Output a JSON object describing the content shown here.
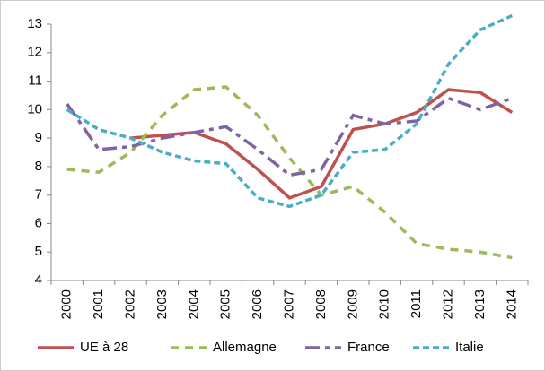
{
  "chart_data": {
    "type": "line",
    "categories": [
      "2000",
      "2001",
      "2002",
      "2003",
      "2004",
      "2005",
      "2006",
      "2007",
      "2008",
      "2009",
      "2010",
      "2011",
      "2012",
      "2013",
      "2014"
    ],
    "series": [
      {
        "name": "UE à 28",
        "color": "#c0504d",
        "values": [
          null,
          null,
          9.0,
          9.1,
          9.2,
          8.8,
          7.9,
          6.9,
          7.3,
          9.3,
          9.5,
          9.9,
          10.7,
          10.6,
          9.9
        ]
      },
      {
        "name": "Allemagne",
        "color": "#9bbb59",
        "values": [
          7.9,
          7.8,
          8.5,
          9.8,
          10.7,
          10.8,
          9.8,
          8.3,
          7.0,
          7.3,
          6.4,
          5.3,
          5.1,
          5.0,
          4.8
        ]
      },
      {
        "name": "France",
        "color": "#8064a2",
        "values": [
          10.2,
          8.6,
          8.7,
          9.0,
          9.2,
          9.4,
          8.6,
          7.7,
          7.9,
          9.8,
          9.5,
          9.6,
          10.4,
          10.0,
          10.4
        ]
      },
      {
        "name": "Italie",
        "color": "#4bacc6",
        "values": [
          10.0,
          9.3,
          9.0,
          8.5,
          8.2,
          8.1,
          6.9,
          6.6,
          7.0,
          8.5,
          8.6,
          9.5,
          11.6,
          12.8,
          13.3
        ]
      }
    ],
    "ylim": [
      4,
      13
    ],
    "yticks": [
      4,
      5,
      6,
      7,
      8,
      9,
      10,
      11,
      12,
      13
    ],
    "grid": false,
    "legend": "bottom"
  }
}
